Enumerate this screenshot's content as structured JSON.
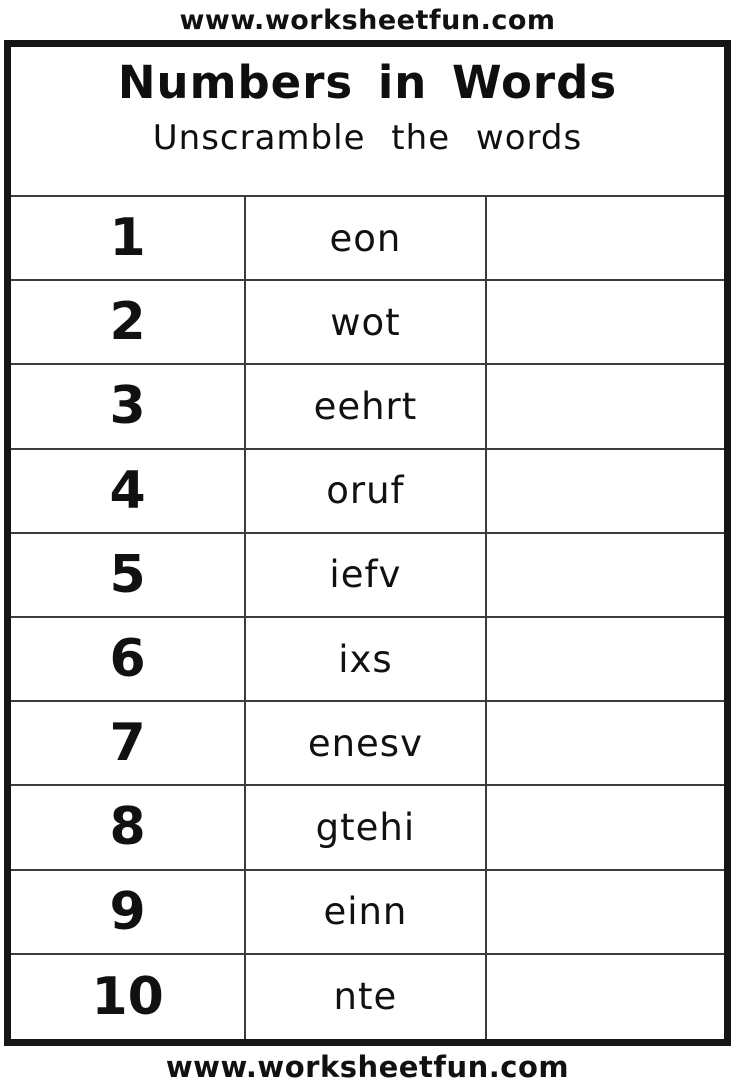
{
  "page": {
    "top_url": "www.worksheetfun.com",
    "bottom_url": "www.worksheetfun.com"
  },
  "worksheet": {
    "title": "Numbers in Words",
    "subtitle": "Unscramble the words",
    "columns": [
      "number",
      "scrambled_word",
      "answer_blank"
    ],
    "rows": [
      {
        "number": "1",
        "scrambled": "eon",
        "answer": ""
      },
      {
        "number": "2",
        "scrambled": "wot",
        "answer": ""
      },
      {
        "number": "3",
        "scrambled": "eehrt",
        "answer": ""
      },
      {
        "number": "4",
        "scrambled": "oruf",
        "answer": ""
      },
      {
        "number": "5",
        "scrambled": "iefv",
        "answer": ""
      },
      {
        "number": "6",
        "scrambled": "ixs",
        "answer": ""
      },
      {
        "number": "7",
        "scrambled": "enesv",
        "answer": ""
      },
      {
        "number": "8",
        "scrambled": "gtehi",
        "answer": ""
      },
      {
        "number": "9",
        "scrambled": "einn",
        "answer": ""
      },
      {
        "number": "10",
        "scrambled": "nte",
        "answer": ""
      }
    ]
  },
  "colors": {
    "text": "#111111",
    "frame_border": "#161616",
    "grid_line": "#3c3c3c",
    "background": "#ffffff"
  }
}
